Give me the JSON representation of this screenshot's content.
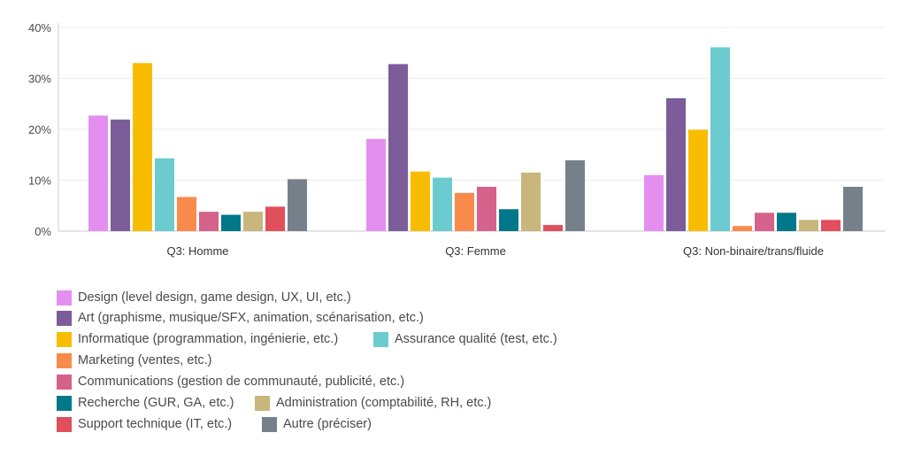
{
  "chart_data": {
    "type": "bar",
    "categories": [
      "Q3: Homme",
      "Q3: Femme",
      "Q3: Non-binaire/trans/fluide"
    ],
    "series": [
      {
        "name": "Design (level design, game design, UX, UI, etc.)",
        "color": "#e48ff0",
        "values": [
          22.7,
          18.1,
          11.0
        ]
      },
      {
        "name": "Art (graphisme, musique/SFX, animation, scénarisation, etc.)",
        "color": "#7c5c99",
        "values": [
          21.9,
          32.8,
          26.1
        ]
      },
      {
        "name": "Informatique (programmation, ingénierie, etc.)",
        "color": "#f8bd00",
        "values": [
          33.0,
          11.7,
          19.9
        ]
      },
      {
        "name": "Assurance qualité (test, etc.)",
        "color": "#6bcbcf",
        "values": [
          14.3,
          10.5,
          36.1
        ]
      },
      {
        "name": "Marketing (ventes,  etc.)",
        "color": "#f88b4b",
        "values": [
          6.7,
          7.5,
          1.0
        ]
      },
      {
        "name": "Communications (gestion de communauté, publicité, etc.)",
        "color": "#d4628b",
        "values": [
          3.8,
          8.7,
          3.6
        ]
      },
      {
        "name": "Recherche (GUR, GA, etc.)",
        "color": "#00788a",
        "values": [
          3.2,
          4.3,
          3.6
        ]
      },
      {
        "name": "Administration (comptabilité, RH, etc.)",
        "color": "#c9b67c",
        "values": [
          3.8,
          11.5,
          2.2
        ]
      },
      {
        "name": "Support technique (IT, etc.)",
        "color": "#e14e5c",
        "values": [
          4.8,
          1.2,
          2.2
        ]
      },
      {
        "name": "Autre (préciser)",
        "color": "#76808a",
        "values": [
          10.2,
          13.9,
          8.7
        ]
      }
    ],
    "yticks": [
      "0%",
      "10%",
      "20%",
      "30%",
      "40%"
    ],
    "ylim": [
      0,
      40
    ],
    "grid": true,
    "legend_position": "bottom-left"
  }
}
